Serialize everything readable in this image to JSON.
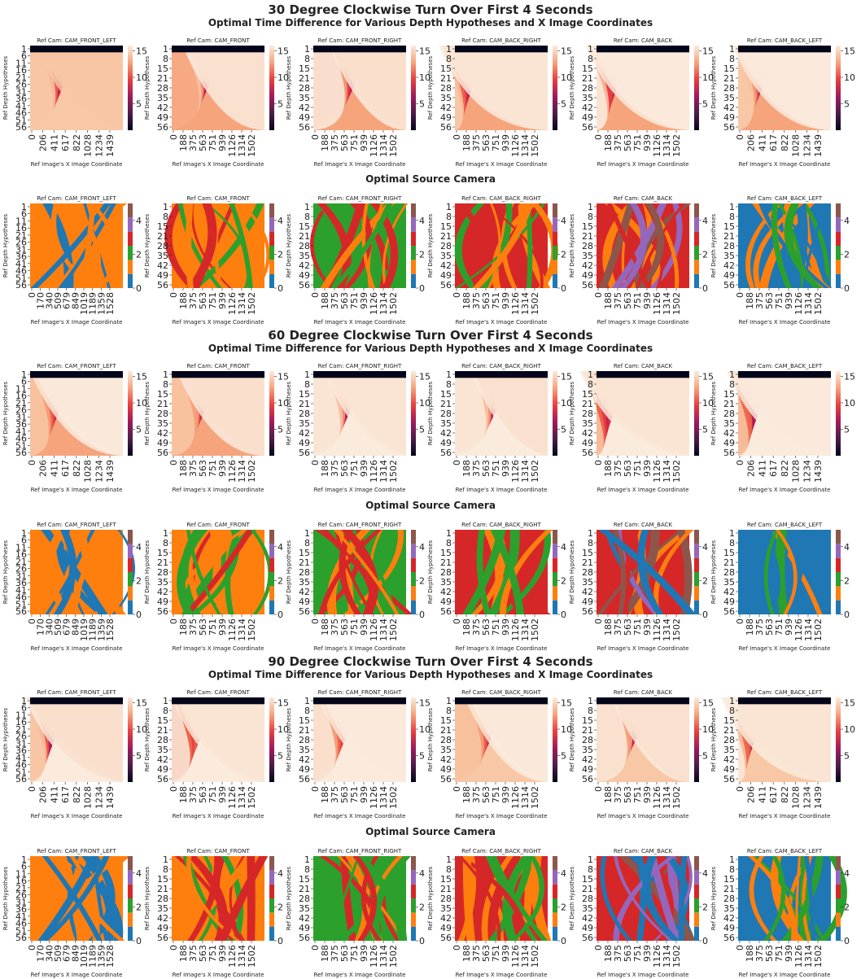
{
  "sections": [
    {
      "title": "30 Degree Clockwise Turn Over First 4 Seconds",
      "time_subtitle": "Optimal Time Difference for Various Depth Hypotheses and X Image Coordinates",
      "source_subtitle": "Optimal Source Camera"
    },
    {
      "title": "60 Degree Clockwise Turn Over First 4 Seconds",
      "time_subtitle": "Optimal Time Difference for Various Depth Hypotheses and X Image Coordinates",
      "source_subtitle": "Optimal Source Camera"
    },
    {
      "title": "90 Degree Clockwise Turn Over First 4 Seconds",
      "time_subtitle": "Optimal Time Difference for Various Depth Hypotheses and X Image Coordinates",
      "source_subtitle": "Optimal Source Camera"
    }
  ],
  "chart_data": {
    "type": "heatmap",
    "xlabel": "Ref Image's X Image Coordinate",
    "ylabel": "Ref Depth Hypotheses",
    "panels": [
      {
        "title": "Ref Cam: CAM_FRONT_LEFT",
        "x_ticks": [
          "0",
          "206",
          "411",
          "617",
          "822",
          "1028",
          "1234",
          "1439"
        ],
        "x_ticks_source": [
          "0",
          "170",
          "340",
          "509",
          "679",
          "849",
          "1019",
          "1189",
          "1359",
          "1528"
        ],
        "y_ticks": [
          "1",
          "6",
          "11",
          "16",
          "21",
          "26",
          "31",
          "36",
          "41",
          "46",
          "51",
          "56"
        ]
      },
      {
        "title": "Ref Cam: CAM_FRONT",
        "x_ticks": [
          "0",
          "188",
          "375",
          "563",
          "751",
          "939",
          "1126",
          "1314",
          "1502"
        ],
        "x_ticks_source": [
          "0",
          "188",
          "375",
          "563",
          "751",
          "939",
          "1126",
          "1314",
          "1502"
        ],
        "y_ticks": [
          "1",
          "8",
          "15",
          "21",
          "28",
          "35",
          "42",
          "49",
          "56"
        ]
      },
      {
        "title": "Ref Cam: CAM_FRONT_RIGHT",
        "x_ticks": [
          "0",
          "188",
          "375",
          "563",
          "751",
          "939",
          "1126",
          "1314",
          "1502"
        ],
        "x_ticks_source": [
          "0",
          "188",
          "375",
          "563",
          "751",
          "939",
          "1126",
          "1314",
          "1502"
        ],
        "y_ticks": [
          "1",
          "8",
          "15",
          "21",
          "28",
          "35",
          "42",
          "49",
          "56"
        ]
      },
      {
        "title": "Ref Cam: CAM_BACK_RIGHT",
        "x_ticks": [
          "0",
          "188",
          "375",
          "563",
          "751",
          "939",
          "1126",
          "1314",
          "1502"
        ],
        "x_ticks_source": [
          "0",
          "188",
          "375",
          "563",
          "751",
          "939",
          "1126",
          "1314",
          "1502"
        ],
        "y_ticks": [
          "1",
          "8",
          "15",
          "21",
          "28",
          "35",
          "42",
          "49",
          "56"
        ]
      },
      {
        "title": "Ref Cam: CAM_BACK",
        "x_ticks": [
          "0",
          "188",
          "375",
          "563",
          "751",
          "939",
          "1126",
          "1314",
          "1502"
        ],
        "x_ticks_source": [
          "0",
          "188",
          "375",
          "563",
          "751",
          "939",
          "1126",
          "1314",
          "1502"
        ],
        "y_ticks": [
          "1",
          "8",
          "15",
          "21",
          "28",
          "35",
          "42",
          "49",
          "56"
        ]
      },
      {
        "title": "Ref Cam: CAM_BACK_LEFT",
        "x_ticks": [
          "0",
          "206",
          "411",
          "617",
          "822",
          "1028",
          "1234",
          "1439"
        ],
        "x_ticks_source": [
          "0",
          "188",
          "375",
          "563",
          "751",
          "939",
          "1126",
          "1314",
          "1502"
        ],
        "y_ticks": [
          "1",
          "8",
          "15",
          "21",
          "28",
          "35",
          "42",
          "49",
          "56"
        ]
      }
    ],
    "time_colorbar": {
      "range": [
        0,
        16
      ],
      "ticks": [
        "5",
        "10",
        "15"
      ],
      "colormap": [
        "#03051a",
        "#4c1d4b",
        "#a11a5b",
        "#e83f3f",
        "#f6a47c",
        "#faebdd"
      ]
    },
    "source_colorbar": {
      "range": [
        0,
        5
      ],
      "ticks": [
        "0",
        "2",
        "4"
      ],
      "categories": [
        {
          "value": 0,
          "color": "#1f77b4"
        },
        {
          "value": 1,
          "color": "#ff7f0e"
        },
        {
          "value": 2,
          "color": "#2ca02c"
        },
        {
          "value": 3,
          "color": "#d62728"
        },
        {
          "value": 4,
          "color": "#9467bd"
        },
        {
          "value": 5,
          "color": "#8c564b"
        }
      ]
    }
  }
}
